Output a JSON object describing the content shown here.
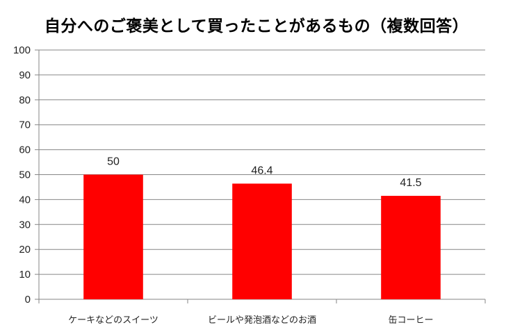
{
  "chart_data": {
    "type": "bar",
    "title": "自分へのご褒美として買ったことがあるもの（複数回答）",
    "categories": [
      "ケーキなどのスイーツ",
      "ビールや発泡酒などのお酒",
      "缶コーヒー"
    ],
    "values": [
      50,
      46.4,
      41.5
    ],
    "data_labels": [
      "50",
      "46.4",
      "41.5"
    ],
    "xlabel": "",
    "ylabel": "",
    "ylim": [
      0,
      100
    ],
    "yticks": [
      0,
      10,
      20,
      30,
      40,
      50,
      60,
      70,
      80,
      90,
      100
    ],
    "grid": true,
    "legend": "none",
    "bar_color": "#ff0000",
    "grid_color": "#868686"
  }
}
